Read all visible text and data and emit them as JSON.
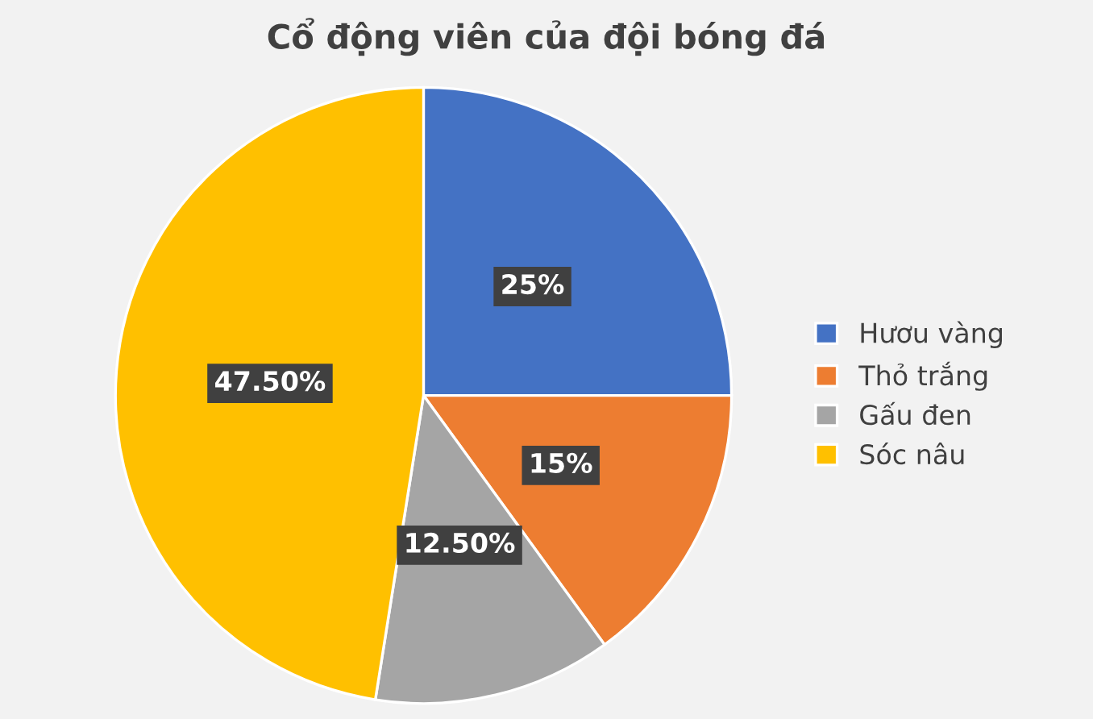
{
  "chart_data": {
    "type": "pie",
    "title": "Cổ động viên của đội bóng đá",
    "categories": [
      "Hươu vàng",
      "Thỏ trắng",
      "Gấu đen",
      "Sóc nâu"
    ],
    "values": [
      25,
      15,
      12.5,
      47.5
    ],
    "colors": [
      "#4472c4",
      "#ed7d31",
      "#a5a5a5",
      "#ffc000"
    ],
    "value_labels": [
      "25%",
      "15%",
      "12.50%",
      "47.50%"
    ],
    "legend": "right"
  }
}
